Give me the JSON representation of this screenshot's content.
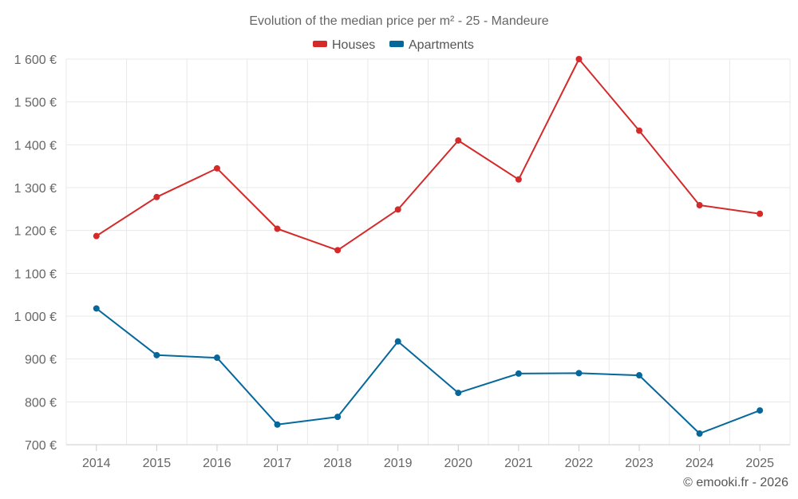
{
  "chart_data": {
    "type": "line",
    "title": "Evolution of the median price per m² - 25 - Mandeure",
    "categories": [
      "2014",
      "2015",
      "2016",
      "2017",
      "2018",
      "2019",
      "2020",
      "2021",
      "2022",
      "2023",
      "2024",
      "2025"
    ],
    "series": [
      {
        "name": "Houses",
        "color": "#d42a2a",
        "values": [
          1187,
          1278,
          1345,
          1204,
          1154,
          1249,
          1410,
          1319,
          1600,
          1433,
          1259,
          1239
        ]
      },
      {
        "name": "Apartments",
        "color": "#05689c",
        "values": [
          1018,
          909,
          903,
          747,
          765,
          941,
          821,
          866,
          867,
          862,
          726,
          780
        ]
      }
    ],
    "ylim": [
      700,
      1600
    ],
    "yticks": [
      700,
      800,
      900,
      1000,
      1100,
      1200,
      1300,
      1400,
      1500,
      1600
    ],
    "ytick_labels": [
      "700 €",
      "800 €",
      "900 €",
      "1 000 €",
      "1 100 €",
      "1 200 €",
      "1 300 €",
      "1 400 €",
      "1 500 €",
      "1 600 €"
    ],
    "xlabel": "",
    "ylabel": "",
    "grid": true,
    "legend": "top-center"
  },
  "credit": "© emooki.fr - 2026"
}
